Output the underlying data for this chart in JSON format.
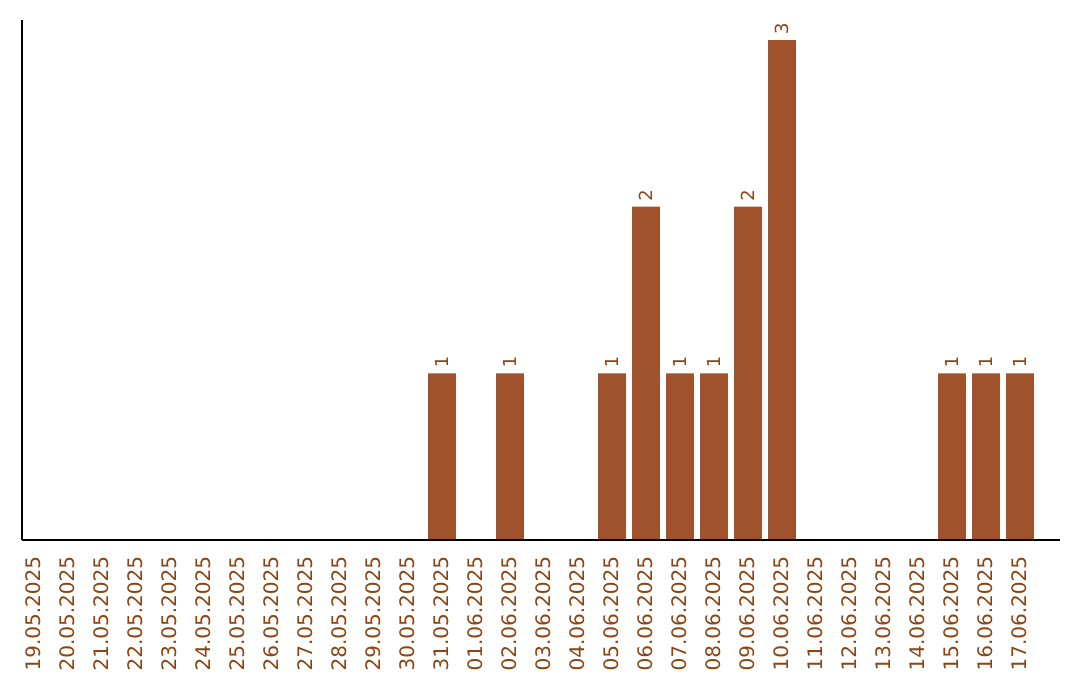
{
  "chart_data": {
    "type": "bar",
    "categories": [
      "19.05.2025",
      "20.05.2025",
      "21.05.2025",
      "22.05.2025",
      "23.05.2025",
      "24.05.2025",
      "25.05.2025",
      "26.05.2025",
      "27.05.2025",
      "28.05.2025",
      "29.05.2025",
      "30.05.2025",
      "31.05.2025",
      "01.06.2025",
      "02.06.2025",
      "03.06.2025",
      "04.06.2025",
      "05.06.2025",
      "06.06.2025",
      "07.06.2025",
      "08.06.2025",
      "09.06.2025",
      "10.06.2025",
      "11.06.2025",
      "12.06.2025",
      "13.06.2025",
      "14.06.2025",
      "15.06.2025",
      "16.06.2025",
      "17.06.2025"
    ],
    "values": [
      null,
      null,
      null,
      null,
      null,
      null,
      null,
      null,
      null,
      null,
      null,
      null,
      1,
      null,
      1,
      null,
      null,
      1,
      2,
      1,
      1,
      2,
      3,
      null,
      null,
      null,
      null,
      1,
      1,
      1
    ],
    "color": "#a0522d",
    "data_labels": true
  }
}
